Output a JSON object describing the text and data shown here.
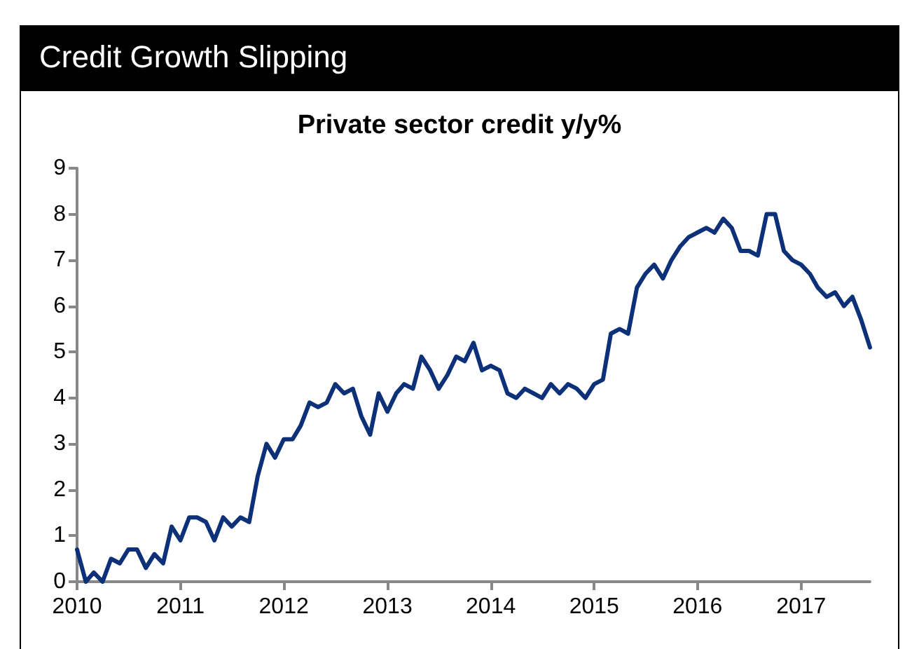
{
  "chart_data": {
    "type": "line",
    "title": "Credit Growth Slipping",
    "subtitle": "Private sector credit y/y%",
    "x": [
      "2010-01",
      "2010-02",
      "2010-03",
      "2010-04",
      "2010-05",
      "2010-06",
      "2010-07",
      "2010-08",
      "2010-09",
      "2010-10",
      "2010-11",
      "2010-12",
      "2011-01",
      "2011-02",
      "2011-03",
      "2011-04",
      "2011-05",
      "2011-06",
      "2011-07",
      "2011-08",
      "2011-09",
      "2011-10",
      "2011-11",
      "2011-12",
      "2012-01",
      "2012-02",
      "2012-03",
      "2012-04",
      "2012-05",
      "2012-06",
      "2012-07",
      "2012-08",
      "2012-09",
      "2012-10",
      "2012-11",
      "2012-12",
      "2013-01",
      "2013-02",
      "2013-03",
      "2013-04",
      "2013-05",
      "2013-06",
      "2013-07",
      "2013-08",
      "2013-09",
      "2013-10",
      "2013-11",
      "2013-12",
      "2014-01",
      "2014-02",
      "2014-03",
      "2014-04",
      "2014-05",
      "2014-06",
      "2014-07",
      "2014-08",
      "2014-09",
      "2014-10",
      "2014-11",
      "2014-12",
      "2015-01",
      "2015-02",
      "2015-03",
      "2015-04",
      "2015-05",
      "2015-06",
      "2015-07",
      "2015-08",
      "2015-09",
      "2015-10",
      "2015-11",
      "2015-12",
      "2016-01",
      "2016-02",
      "2016-03",
      "2016-04",
      "2016-05",
      "2016-06",
      "2016-07",
      "2016-08",
      "2016-09",
      "2016-10",
      "2016-11",
      "2016-12",
      "2017-01",
      "2017-02",
      "2017-03",
      "2017-04",
      "2017-05",
      "2017-06",
      "2017-07",
      "2017-08",
      "2017-09"
    ],
    "series": [
      {
        "color": "#0d3178",
        "values": [
          0.7,
          0,
          0.2,
          0,
          0.5,
          0.4,
          0.7,
          0.7,
          0.3,
          0.6,
          0.4,
          1.2,
          0.9,
          1.4,
          1.4,
          1.3,
          0.9,
          1.4,
          1.2,
          1.4,
          1.3,
          2.3,
          3.0,
          2.7,
          3.1,
          3.1,
          3.4,
          3.9,
          3.8,
          3.9,
          4.3,
          4.1,
          4.2,
          3.6,
          3.2,
          4.1,
          3.7,
          4.1,
          4.3,
          4.2,
          4.9,
          4.6,
          4.2,
          4.5,
          4.9,
          4.8,
          5.2,
          4.6,
          4.7,
          4.6,
          4.1,
          4.0,
          4.2,
          4.1,
          4.0,
          4.3,
          4.1,
          4.3,
          4.2,
          4.0,
          4.3,
          4.4,
          5.4,
          5.5,
          5.4,
          6.4,
          6.7,
          6.9,
          6.6,
          7.0,
          7.3,
          7.5,
          7.6,
          7.7,
          7.6,
          7.9,
          7.7,
          7.2,
          7.2,
          7.1,
          8.0,
          8.0,
          7.2,
          7.0,
          6.9,
          6.7,
          6.4,
          6.2,
          6.3,
          6.0,
          6.2,
          5.7,
          5.1
        ]
      }
    ],
    "xlim": [
      "2010-01",
      "2017-09"
    ],
    "xticks": [
      "2010",
      "2011",
      "2012",
      "2013",
      "2014",
      "2015",
      "2016",
      "2017"
    ],
    "ylim": [
      0,
      9
    ],
    "yticks": [
      0,
      1,
      2,
      3,
      4,
      5,
      6,
      7,
      8,
      9
    ],
    "grid": false,
    "marker": "none",
    "line_style": "solid"
  }
}
